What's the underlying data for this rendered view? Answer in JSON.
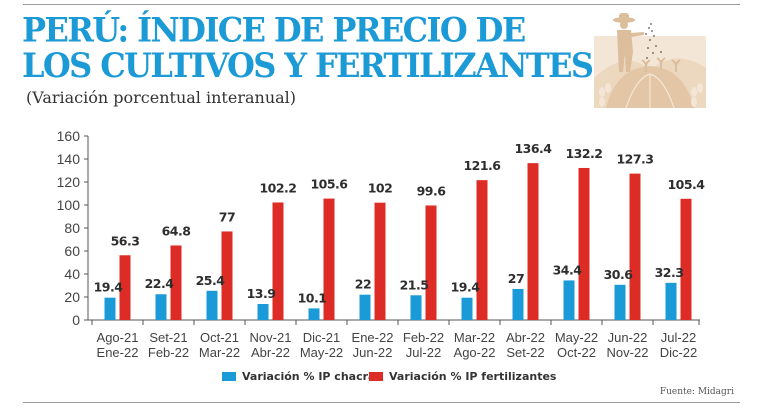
{
  "header": {
    "title_line1": "PERÚ: ÍNDICE DE PRECIO DE",
    "title_line2": "LOS CULTIVOS Y FERTILIZANTES",
    "subtitle": "(Variación porcentual interanual)",
    "illustration": "farmer-sowing-seeds-icon"
  },
  "colors": {
    "title": "#1b9ad6",
    "chacra": "#1a9bd7",
    "fertilizantes": "#dd2c26"
  },
  "source": "Fuente: Midagri",
  "chart_data": {
    "type": "bar",
    "title": "PERÚ: ÍNDICE DE PRECIO DE LOS CULTIVOS Y FERTILIZANTES",
    "subtitle": "(Variación porcentual interanual)",
    "xlabel": "",
    "ylabel": "",
    "ylim": [
      0,
      160
    ],
    "yticks": [
      0,
      20,
      40,
      60,
      80,
      100,
      120,
      140,
      160
    ],
    "grid": false,
    "legend_position": "bottom",
    "categories": [
      [
        "Ago-21",
        "Ene-22"
      ],
      [
        "Set-21",
        "Feb-22"
      ],
      [
        "Oct-21",
        "Mar-22"
      ],
      [
        "Nov-21",
        "Abr-22"
      ],
      [
        "Dic-21",
        "May-22"
      ],
      [
        "Ene-22",
        "Jun-22"
      ],
      [
        "Feb-22",
        "Jul-22"
      ],
      [
        "Mar-22",
        "Ago-22"
      ],
      [
        "Abr-22",
        "Set-22"
      ],
      [
        "May-22",
        "Oct-22"
      ],
      [
        "Jun-22",
        "Nov-22"
      ],
      [
        "Jul-22",
        "Dic-22"
      ]
    ],
    "series": [
      {
        "name": "Variación % IP chacra",
        "color": "#1a9bd7",
        "values": [
          19.4,
          22.4,
          25.4,
          13.9,
          10.1,
          22,
          21.5,
          19.4,
          27,
          34.4,
          30.6,
          32.3
        ],
        "labels": [
          "19.4",
          "22.4",
          "25.4",
          "13.9",
          "10.1",
          "22",
          "21.5",
          "19.4",
          "27",
          "34.4",
          "30.6",
          "32.3"
        ]
      },
      {
        "name": "Variación % IP fertilizantes",
        "color": "#dd2c26",
        "values": [
          56.3,
          64.8,
          77,
          102.2,
          105.6,
          102,
          99.6,
          121.6,
          136.4,
          132.2,
          127.3,
          105.4
        ],
        "labels": [
          "56.3",
          "64.8",
          "77",
          "102.2",
          "105.6",
          "102",
          "99.6",
          "121.6",
          "136.4",
          "132.2",
          "127.3",
          "105.4"
        ]
      }
    ]
  }
}
